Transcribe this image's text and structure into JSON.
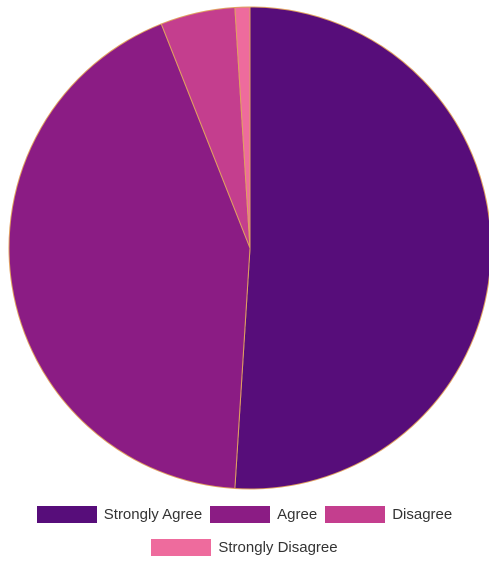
{
  "chart_data": {
    "type": "pie",
    "categories": [
      "Strongly Agree",
      "Agree",
      "Disagree",
      "Strongly Disagree"
    ],
    "values": [
      51.0,
      43.0,
      5.0,
      1.0
    ],
    "colors": [
      "#570d7a",
      "#8b1c84",
      "#c43e8e",
      "#ee6b9d"
    ],
    "border_color": "#e0a060",
    "legend_position": "bottom",
    "title": ""
  },
  "legend": {
    "items": [
      {
        "label": "Strongly Agree",
        "color": "#570d7a"
      },
      {
        "label": "Agree",
        "color": "#8b1c84"
      },
      {
        "label": "Disagree",
        "color": "#c43e8e"
      },
      {
        "label": "Strongly Disagree",
        "color": "#ee6b9d"
      }
    ]
  }
}
